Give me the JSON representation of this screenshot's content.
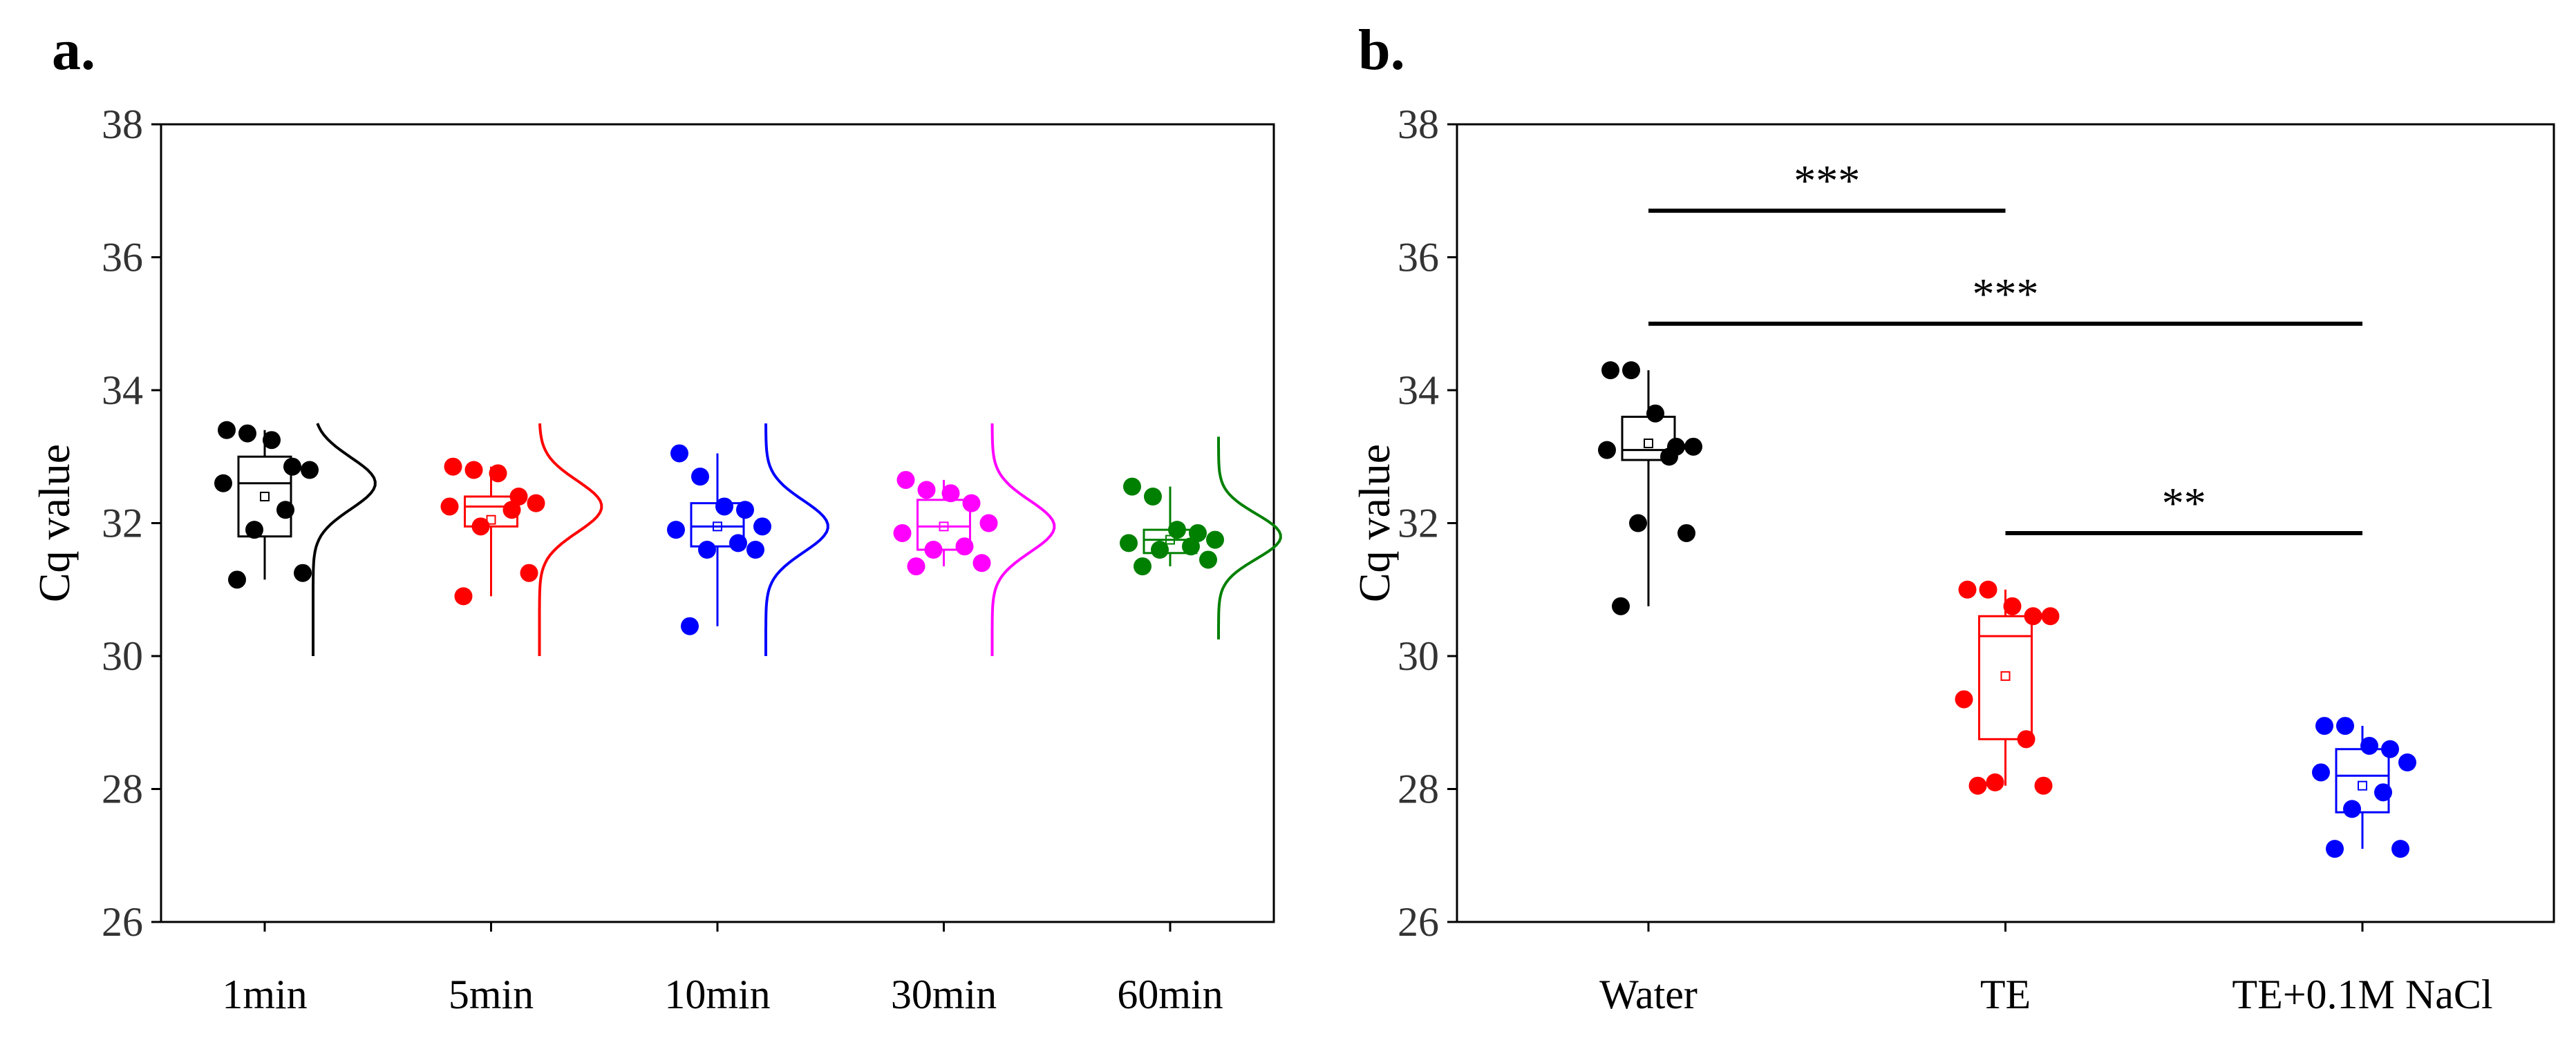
{
  "figure": {
    "panel_a_label": "a.",
    "panel_b_label": "b."
  },
  "chart_data": [
    {
      "type": "box-scatter",
      "panel": "a.",
      "ylabel": "Cq value",
      "xlabel": "",
      "ylim": [
        26,
        38
      ],
      "yticks": [
        26,
        28,
        30,
        32,
        34,
        36,
        38
      ],
      "categories": [
        "1min",
        "5min",
        "10min",
        "30min",
        "60min"
      ],
      "grid": false,
      "series": [
        {
          "name": "1min",
          "color": "#000000",
          "points": [
            33.4,
            33.35,
            33.25,
            32.85,
            32.8,
            32.6,
            32.2,
            31.9,
            31.25,
            31.15
          ],
          "box": {
            "q1": 31.8,
            "median": 32.6,
            "q3": 33.0,
            "mean": 32.4
          },
          "density": {
            "ymin": 30.0,
            "ymax": 33.5,
            "peak": 32.6
          }
        },
        {
          "name": "5min",
          "color": "#ff0000",
          "points": [
            32.85,
            32.8,
            32.75,
            32.4,
            32.3,
            32.25,
            32.2,
            31.95,
            31.25,
            30.9
          ],
          "box": {
            "q1": 31.95,
            "median": 32.25,
            "q3": 32.4,
            "mean": 32.05
          },
          "density": {
            "ymin": 30.0,
            "ymax": 33.5,
            "peak": 32.25
          }
        },
        {
          "name": "10min",
          "color": "#0000ff",
          "points": [
            33.05,
            32.7,
            32.25,
            32.2,
            31.95,
            31.9,
            31.7,
            31.6,
            31.6,
            30.45
          ],
          "box": {
            "q1": 31.65,
            "median": 31.95,
            "q3": 32.3,
            "mean": 31.95
          },
          "density": {
            "ymin": 30.0,
            "ymax": 33.5,
            "peak": 31.95
          }
        },
        {
          "name": "30min",
          "color": "#ff00ff",
          "points": [
            32.65,
            32.5,
            32.45,
            32.3,
            32.0,
            31.85,
            31.65,
            31.6,
            31.4,
            31.35
          ],
          "box": {
            "q1": 31.6,
            "median": 31.95,
            "q3": 32.35,
            "mean": 31.95
          },
          "density": {
            "ymin": 30.0,
            "ymax": 33.5,
            "peak": 31.95
          }
        },
        {
          "name": "60min",
          "color": "#008000",
          "points": [
            32.55,
            32.4,
            31.9,
            31.85,
            31.75,
            31.7,
            31.65,
            31.6,
            31.45,
            31.35
          ],
          "box": {
            "q1": 31.55,
            "median": 31.75,
            "q3": 31.9,
            "mean": 31.75
          },
          "density": {
            "ymin": 30.25,
            "ymax": 33.3,
            "peak": 31.8
          }
        }
      ]
    },
    {
      "type": "box-scatter",
      "panel": "b.",
      "ylabel": "Cq value",
      "xlabel": "",
      "ylim": [
        26,
        38
      ],
      "yticks": [
        26,
        28,
        30,
        32,
        34,
        36,
        38
      ],
      "categories": [
        "Water",
        "TE",
        "TE+0.1M NaCl"
      ],
      "grid": false,
      "series": [
        {
          "name": "Water",
          "color": "#000000",
          "points": [
            34.3,
            34.3,
            33.65,
            33.15,
            33.15,
            33.1,
            33.0,
            32.0,
            31.85,
            30.75
          ],
          "box": {
            "q1": 32.95,
            "median": 33.1,
            "q3": 33.6,
            "mean": 33.2
          }
        },
        {
          "name": "TE",
          "color": "#ff0000",
          "points": [
            31.0,
            31.0,
            30.75,
            30.6,
            30.6,
            29.35,
            28.75,
            28.1,
            28.05,
            28.05
          ],
          "box": {
            "q1": 28.75,
            "median": 30.3,
            "q3": 30.6,
            "mean": 29.7
          }
        },
        {
          "name": "TE+0.1M NaCl",
          "color": "#0000ff",
          "points": [
            28.95,
            28.95,
            28.65,
            28.6,
            28.4,
            28.25,
            27.95,
            27.7,
            27.1,
            27.1
          ],
          "box": {
            "q1": 27.65,
            "median": 28.2,
            "q3": 28.6,
            "mean": 28.05
          }
        }
      ],
      "significance": [
        {
          "from": "Water",
          "to": "TE",
          "y": 36.7,
          "label": "***"
        },
        {
          "from": "Water",
          "to": "TE+0.1M NaCl",
          "y": 35.0,
          "label": "***"
        },
        {
          "from": "TE",
          "to": "TE+0.1M NaCl",
          "y": 31.85,
          "label": "**"
        }
      ]
    }
  ]
}
